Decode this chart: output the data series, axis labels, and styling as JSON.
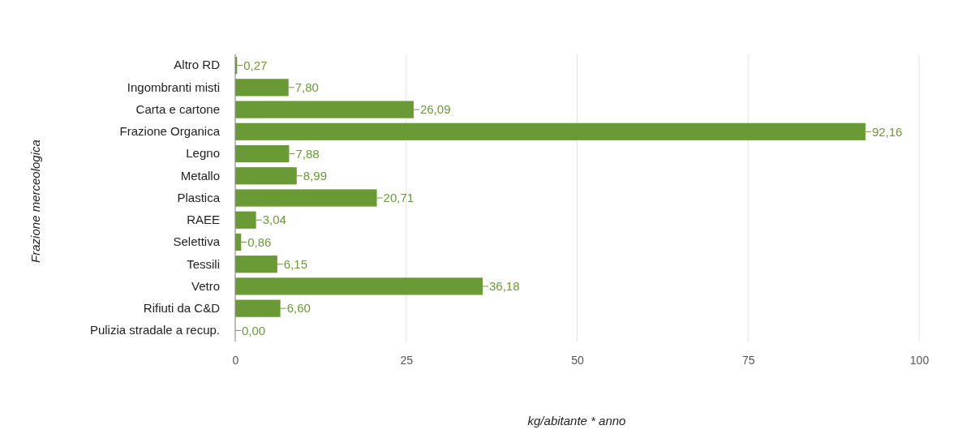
{
  "chart_data": {
    "type": "bar",
    "orientation": "horizontal",
    "xlabel": "kg/abitante * anno",
    "ylabel": "Frazione merceologica",
    "categories": [
      "Altro RD",
      "Ingombranti misti",
      "Carta e cartone",
      "Frazione Organica",
      "Legno",
      "Metallo",
      "Plastica",
      "RAEE",
      "Selettiva",
      "Tessili",
      "Vetro",
      "Rifiuti da C&D",
      "Pulizia stradale a recup."
    ],
    "values": [
      0.27,
      7.8,
      26.09,
      92.16,
      7.88,
      8.99,
      20.71,
      3.04,
      0.86,
      6.15,
      36.18,
      6.6,
      0.0
    ],
    "value_labels": [
      "0,27",
      "7,80",
      "26,09",
      "92,16",
      "7,88",
      "8,99",
      "20,71",
      "3,04",
      "0,86",
      "6,15",
      "36,18",
      "6,60",
      "0,00"
    ],
    "color": "#6a9a35",
    "xlim": [
      0,
      100
    ],
    "xticks": [
      0,
      25,
      50,
      75,
      100
    ],
    "grid": "x"
  }
}
